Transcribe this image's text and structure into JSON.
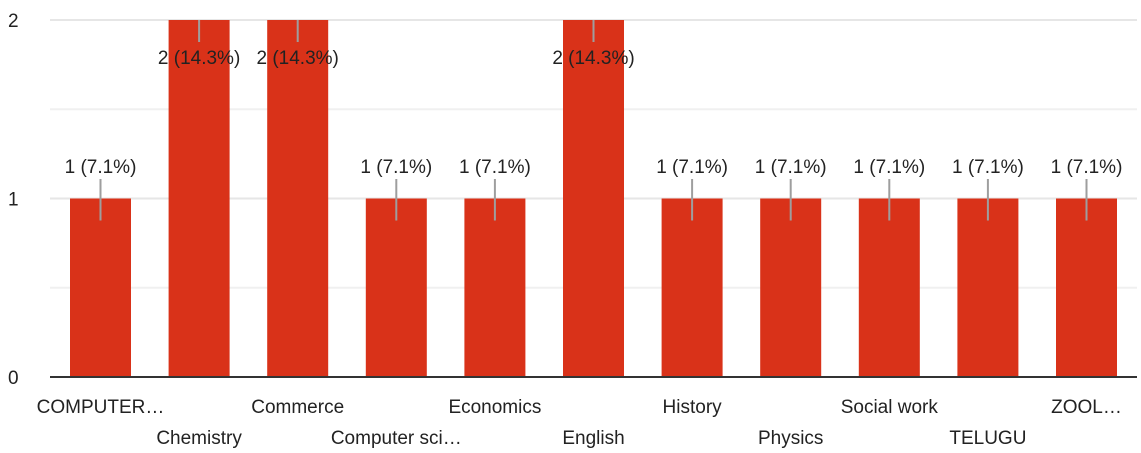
{
  "chart_data": {
    "type": "bar",
    "categories": [
      "COMPUTER…",
      "Chemistry",
      "Commerce",
      "Computer sci…",
      "Economics",
      "English",
      "History",
      "Physics",
      "Social work",
      "TELUGU",
      "ZOOL…"
    ],
    "values": [
      1,
      2,
      2,
      1,
      1,
      2,
      1,
      1,
      1,
      1,
      1
    ],
    "data_labels": [
      "1 (7.1%)",
      "2 (14.3%)",
      "2 (14.3%)",
      "1 (7.1%)",
      "1 (7.1%)",
      "2 (14.3%)",
      "1 (7.1%)",
      "1 (7.1%)",
      "1 (7.1%)",
      "1 (7.1%)",
      "1 (7.1%)"
    ],
    "y_ticks": [
      "0",
      "1",
      "2"
    ],
    "ylim": [
      0,
      2
    ],
    "grid": true,
    "bar_color": "#d93219",
    "title": "",
    "xlabel": "",
    "ylabel": ""
  }
}
